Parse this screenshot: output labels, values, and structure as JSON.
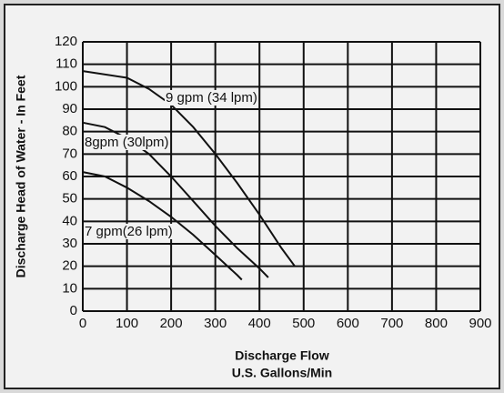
{
  "chart_data": {
    "type": "line",
    "xlabel": "Discharge Flow",
    "xlabel2": "U.S. Gallons/Min",
    "ylabel": "Discharge Head of Water - In Feet",
    "series": [
      {
        "name": "9 gpm (34 lpm)",
        "color": "#111111",
        "x": [
          0,
          100,
          150,
          200,
          250,
          300,
          350,
          400,
          450,
          480
        ],
        "values": [
          107,
          104,
          99,
          92,
          82,
          70,
          57,
          43,
          28,
          20
        ]
      },
      {
        "name": "8gpm (30lpm)",
        "color": "#111111",
        "x": [
          0,
          50,
          100,
          150,
          200,
          250,
          300,
          350,
          400,
          420
        ],
        "values": [
          84,
          82,
          77,
          70,
          60,
          49,
          38,
          28,
          19,
          15
        ]
      },
      {
        "name": "7 gpm(26 lpm)",
        "color": "#111111",
        "x": [
          0,
          50,
          100,
          150,
          200,
          250,
          300,
          350,
          360
        ],
        "values": [
          62,
          60,
          55,
          49,
          42,
          34,
          25,
          16,
          14
        ]
      }
    ],
    "xlim": [
      0,
      900
    ],
    "xticks": [
      0,
      100,
      200,
      300,
      400,
      500,
      600,
      700,
      800,
      900
    ],
    "ylim": [
      0,
      120
    ],
    "yticks": [
      0,
      10,
      20,
      30,
      40,
      50,
      60,
      70,
      80,
      90,
      100,
      110,
      120
    ],
    "grid": true
  }
}
